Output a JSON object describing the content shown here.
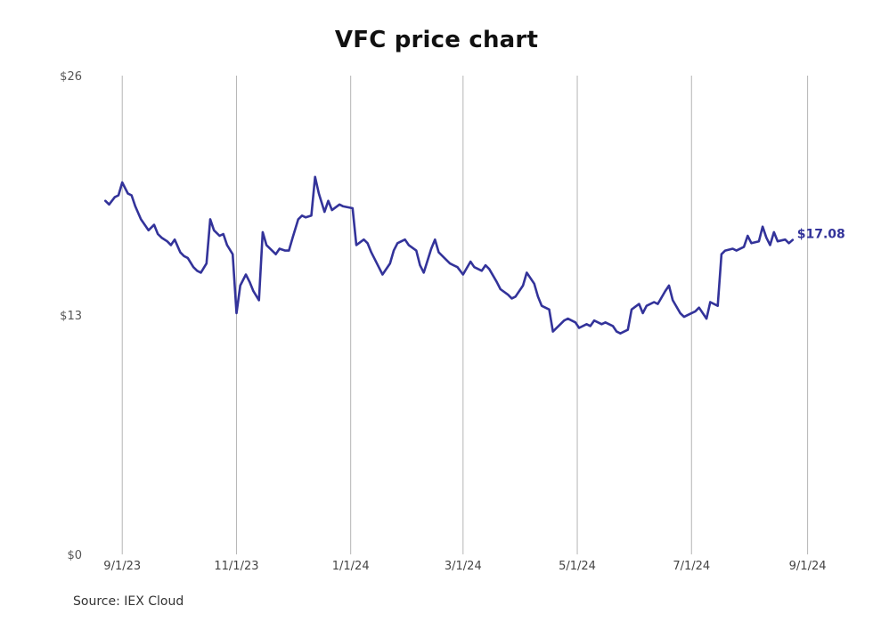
{
  "source": "Source: IEX Cloud",
  "chart_data": {
    "type": "line",
    "title": "VFC price chart",
    "xlabel": "",
    "ylabel": "",
    "ylim": [
      0,
      26
    ],
    "xlim": [
      "2023-08-20",
      "2024-09-05"
    ],
    "y_ticks": [
      {
        "value": 0,
        "label": "$0"
      },
      {
        "value": 13,
        "label": "$13"
      },
      {
        "value": 26,
        "label": "$26"
      }
    ],
    "x_ticks": [
      {
        "date": "2023-09-01",
        "label": "9/1/23"
      },
      {
        "date": "2023-11-01",
        "label": "11/1/23"
      },
      {
        "date": "2024-01-01",
        "label": "1/1/24"
      },
      {
        "date": "2024-03-01",
        "label": "3/1/24"
      },
      {
        "date": "2024-05-01",
        "label": "5/1/24"
      },
      {
        "date": "2024-07-01",
        "label": "7/1/24"
      },
      {
        "date": "2024-09-01",
        "label": "9/1/24"
      }
    ],
    "grid": {
      "vertical": true,
      "horizontal": false
    },
    "colors": {
      "line": "#33339a"
    },
    "last_value_label": "$17.08",
    "series": [
      {
        "points": [
          [
            "2023-08-23",
            19.2
          ],
          [
            "2023-08-25",
            19.0
          ],
          [
            "2023-08-28",
            19.4
          ],
          [
            "2023-08-30",
            19.5
          ],
          [
            "2023-09-01",
            20.2
          ],
          [
            "2023-09-04",
            19.6
          ],
          [
            "2023-09-06",
            19.5
          ],
          [
            "2023-09-08",
            18.9
          ],
          [
            "2023-09-11",
            18.2
          ],
          [
            "2023-09-13",
            17.9
          ],
          [
            "2023-09-15",
            17.6
          ],
          [
            "2023-09-18",
            17.9
          ],
          [
            "2023-09-20",
            17.4
          ],
          [
            "2023-09-22",
            17.2
          ],
          [
            "2023-09-25",
            17.0
          ],
          [
            "2023-09-27",
            16.8
          ],
          [
            "2023-09-29",
            17.1
          ],
          [
            "2023-10-02",
            16.4
          ],
          [
            "2023-10-04",
            16.2
          ],
          [
            "2023-10-06",
            16.1
          ],
          [
            "2023-10-09",
            15.6
          ],
          [
            "2023-10-11",
            15.4
          ],
          [
            "2023-10-13",
            15.3
          ],
          [
            "2023-10-16",
            15.8
          ],
          [
            "2023-10-18",
            18.2
          ],
          [
            "2023-10-20",
            17.6
          ],
          [
            "2023-10-23",
            17.3
          ],
          [
            "2023-10-25",
            17.4
          ],
          [
            "2023-10-27",
            16.8
          ],
          [
            "2023-10-30",
            16.3
          ],
          [
            "2023-11-01",
            13.1
          ],
          [
            "2023-11-03",
            14.6
          ],
          [
            "2023-11-06",
            15.2
          ],
          [
            "2023-11-08",
            14.8
          ],
          [
            "2023-11-10",
            14.3
          ],
          [
            "2023-11-13",
            13.8
          ],
          [
            "2023-11-15",
            17.5
          ],
          [
            "2023-11-17",
            16.8
          ],
          [
            "2023-11-20",
            16.5
          ],
          [
            "2023-11-22",
            16.3
          ],
          [
            "2023-11-24",
            16.6
          ],
          [
            "2023-11-27",
            16.5
          ],
          [
            "2023-11-29",
            16.5
          ],
          [
            "2023-12-01",
            17.2
          ],
          [
            "2023-12-04",
            18.2
          ],
          [
            "2023-12-06",
            18.4
          ],
          [
            "2023-12-08",
            18.3
          ],
          [
            "2023-12-11",
            18.4
          ],
          [
            "2023-12-13",
            20.5
          ],
          [
            "2023-12-15",
            19.6
          ],
          [
            "2023-12-18",
            18.6
          ],
          [
            "2023-12-20",
            19.2
          ],
          [
            "2023-12-22",
            18.7
          ],
          [
            "2023-12-26",
            19.0
          ],
          [
            "2023-12-28",
            18.9
          ],
          [
            "2024-01-02",
            18.8
          ],
          [
            "2024-01-04",
            16.8
          ],
          [
            "2024-01-08",
            17.1
          ],
          [
            "2024-01-10",
            16.9
          ],
          [
            "2024-01-12",
            16.4
          ],
          [
            "2024-01-16",
            15.6
          ],
          [
            "2024-01-18",
            15.2
          ],
          [
            "2024-01-22",
            15.8
          ],
          [
            "2024-01-24",
            16.5
          ],
          [
            "2024-01-26",
            16.9
          ],
          [
            "2024-01-30",
            17.1
          ],
          [
            "2024-02-01",
            16.8
          ],
          [
            "2024-02-05",
            16.5
          ],
          [
            "2024-02-07",
            15.7
          ],
          [
            "2024-02-09",
            15.3
          ],
          [
            "2024-02-13",
            16.6
          ],
          [
            "2024-02-15",
            17.1
          ],
          [
            "2024-02-17",
            16.4
          ],
          [
            "2024-02-21",
            16.0
          ],
          [
            "2024-02-23",
            15.8
          ],
          [
            "2024-02-27",
            15.6
          ],
          [
            "2024-03-01",
            15.2
          ],
          [
            "2024-03-05",
            15.9
          ],
          [
            "2024-03-07",
            15.6
          ],
          [
            "2024-03-11",
            15.4
          ],
          [
            "2024-03-13",
            15.7
          ],
          [
            "2024-03-15",
            15.5
          ],
          [
            "2024-03-19",
            14.8
          ],
          [
            "2024-03-21",
            14.4
          ],
          [
            "2024-03-25",
            14.1
          ],
          [
            "2024-03-27",
            13.9
          ],
          [
            "2024-03-29",
            14.0
          ],
          [
            "2024-04-02",
            14.6
          ],
          [
            "2024-04-04",
            15.3
          ],
          [
            "2024-04-08",
            14.7
          ],
          [
            "2024-04-10",
            14.0
          ],
          [
            "2024-04-12",
            13.5
          ],
          [
            "2024-04-16",
            13.3
          ],
          [
            "2024-04-18",
            12.1
          ],
          [
            "2024-04-22",
            12.5
          ],
          [
            "2024-04-24",
            12.7
          ],
          [
            "2024-04-26",
            12.8
          ],
          [
            "2024-04-30",
            12.6
          ],
          [
            "2024-05-02",
            12.3
          ],
          [
            "2024-05-06",
            12.5
          ],
          [
            "2024-05-08",
            12.4
          ],
          [
            "2024-05-10",
            12.7
          ],
          [
            "2024-05-14",
            12.5
          ],
          [
            "2024-05-16",
            12.6
          ],
          [
            "2024-05-20",
            12.4
          ],
          [
            "2024-05-22",
            12.1
          ],
          [
            "2024-05-24",
            12.0
          ],
          [
            "2024-05-28",
            12.2
          ],
          [
            "2024-05-30",
            13.3
          ],
          [
            "2024-06-03",
            13.6
          ],
          [
            "2024-06-05",
            13.1
          ],
          [
            "2024-06-07",
            13.5
          ],
          [
            "2024-06-11",
            13.7
          ],
          [
            "2024-06-13",
            13.6
          ],
          [
            "2024-06-17",
            14.3
          ],
          [
            "2024-06-19",
            14.6
          ],
          [
            "2024-06-21",
            13.8
          ],
          [
            "2024-06-25",
            13.1
          ],
          [
            "2024-06-27",
            12.9
          ],
          [
            "2024-07-01",
            13.1
          ],
          [
            "2024-07-03",
            13.2
          ],
          [
            "2024-07-05",
            13.4
          ],
          [
            "2024-07-09",
            12.8
          ],
          [
            "2024-07-11",
            13.7
          ],
          [
            "2024-07-15",
            13.5
          ],
          [
            "2024-07-17",
            16.3
          ],
          [
            "2024-07-19",
            16.5
          ],
          [
            "2024-07-23",
            16.6
          ],
          [
            "2024-07-25",
            16.5
          ],
          [
            "2024-07-29",
            16.7
          ],
          [
            "2024-07-31",
            17.3
          ],
          [
            "2024-08-02",
            16.9
          ],
          [
            "2024-08-06",
            17.0
          ],
          [
            "2024-08-08",
            17.8
          ],
          [
            "2024-08-10",
            17.2
          ],
          [
            "2024-08-12",
            16.8
          ],
          [
            "2024-08-14",
            17.5
          ],
          [
            "2024-08-16",
            17.0
          ],
          [
            "2024-08-20",
            17.1
          ],
          [
            "2024-08-22",
            16.9
          ],
          [
            "2024-08-24",
            17.08
          ]
        ]
      }
    ]
  }
}
